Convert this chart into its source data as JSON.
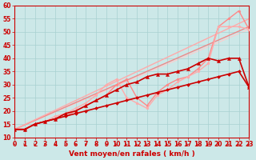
{
  "xlabel": "Vent moyen/en rafales ( km/h )",
  "bg_color": "#cce8e8",
  "grid_color": "#a8d0d0",
  "xlim": [
    0,
    23
  ],
  "ylim": [
    10,
    60
  ],
  "yticks": [
    10,
    15,
    20,
    25,
    30,
    35,
    40,
    45,
    50,
    55,
    60
  ],
  "xticks": [
    0,
    1,
    2,
    3,
    4,
    5,
    6,
    7,
    8,
    9,
    10,
    11,
    12,
    13,
    14,
    15,
    16,
    17,
    18,
    19,
    20,
    21,
    22,
    23
  ],
  "lines": [
    {
      "x": [
        0,
        1,
        2,
        3,
        4,
        5,
        6,
        7,
        8,
        9,
        10,
        11,
        12,
        13,
        14,
        15,
        16,
        17,
        18,
        19,
        20,
        21,
        22,
        23
      ],
      "y": [
        13,
        13,
        15,
        16,
        17,
        18,
        19,
        20,
        21,
        22,
        23,
        24,
        25,
        26,
        27,
        28,
        29,
        30,
        31,
        32,
        33,
        34,
        35,
        29
      ],
      "color": "#cc0000",
      "lw": 1.2,
      "marker": "D",
      "ms": 2.0,
      "zorder": 6
    },
    {
      "x": [
        0,
        1,
        2,
        3,
        4,
        5,
        6,
        7,
        8,
        9,
        10,
        11,
        12,
        13,
        14,
        15,
        16,
        17,
        18,
        19,
        20,
        21,
        22,
        23
      ],
      "y": [
        13,
        13,
        15,
        16,
        17,
        19,
        20,
        22,
        24,
        26,
        28,
        30,
        31,
        33,
        34,
        34,
        35,
        36,
        38,
        40,
        39,
        40,
        40,
        29
      ],
      "color": "#cc0000",
      "lw": 1.2,
      "marker": "^",
      "ms": 3.0,
      "zorder": 5
    },
    {
      "x": [
        0,
        23
      ],
      "y": [
        13,
        52
      ],
      "color": "#ee8888",
      "lw": 1.0,
      "marker": null,
      "ms": 0,
      "zorder": 2
    },
    {
      "x": [
        0,
        23
      ],
      "y": [
        13,
        55
      ],
      "color": "#ffaaaa",
      "lw": 1.0,
      "marker": null,
      "ms": 0,
      "zorder": 2
    },
    {
      "x": [
        0,
        1,
        2,
        3,
        4,
        5,
        6,
        7,
        8,
        9,
        10,
        11,
        12,
        13,
        14,
        15,
        16,
        17,
        18,
        19,
        20,
        21,
        22,
        23
      ],
      "y": [
        13,
        13,
        15,
        16,
        17,
        18,
        20,
        22,
        24,
        26,
        30,
        32,
        25,
        22,
        27,
        30,
        32,
        33,
        36,
        40,
        52,
        55,
        58,
        51
      ],
      "color": "#ff8888",
      "lw": 1.0,
      "marker": "o",
      "ms": 2.0,
      "zorder": 3
    },
    {
      "x": [
        0,
        1,
        2,
        3,
        4,
        5,
        6,
        7,
        8,
        9,
        10,
        11,
        12,
        13,
        14,
        15,
        16,
        17,
        18,
        19,
        20,
        21,
        22,
        23
      ],
      "y": [
        13,
        13,
        15,
        16,
        18,
        19,
        21,
        23,
        26,
        30,
        32,
        25,
        23,
        21,
        26,
        28,
        31,
        33,
        35,
        38,
        52,
        52,
        52,
        51
      ],
      "color": "#ffaaaa",
      "lw": 1.0,
      "marker": "o",
      "ms": 2.0,
      "zorder": 3
    },
    {
      "x": [
        0,
        23
      ],
      "y": [
        13,
        51
      ],
      "color": "#ffcccc",
      "lw": 0.8,
      "marker": null,
      "ms": 0,
      "zorder": 1
    }
  ],
  "arrow_color": "#cc0000",
  "xlabel_color": "#cc0000",
  "xlabel_fontsize": 6.5,
  "tick_fontsize": 5.5,
  "tick_color": "#cc0000"
}
